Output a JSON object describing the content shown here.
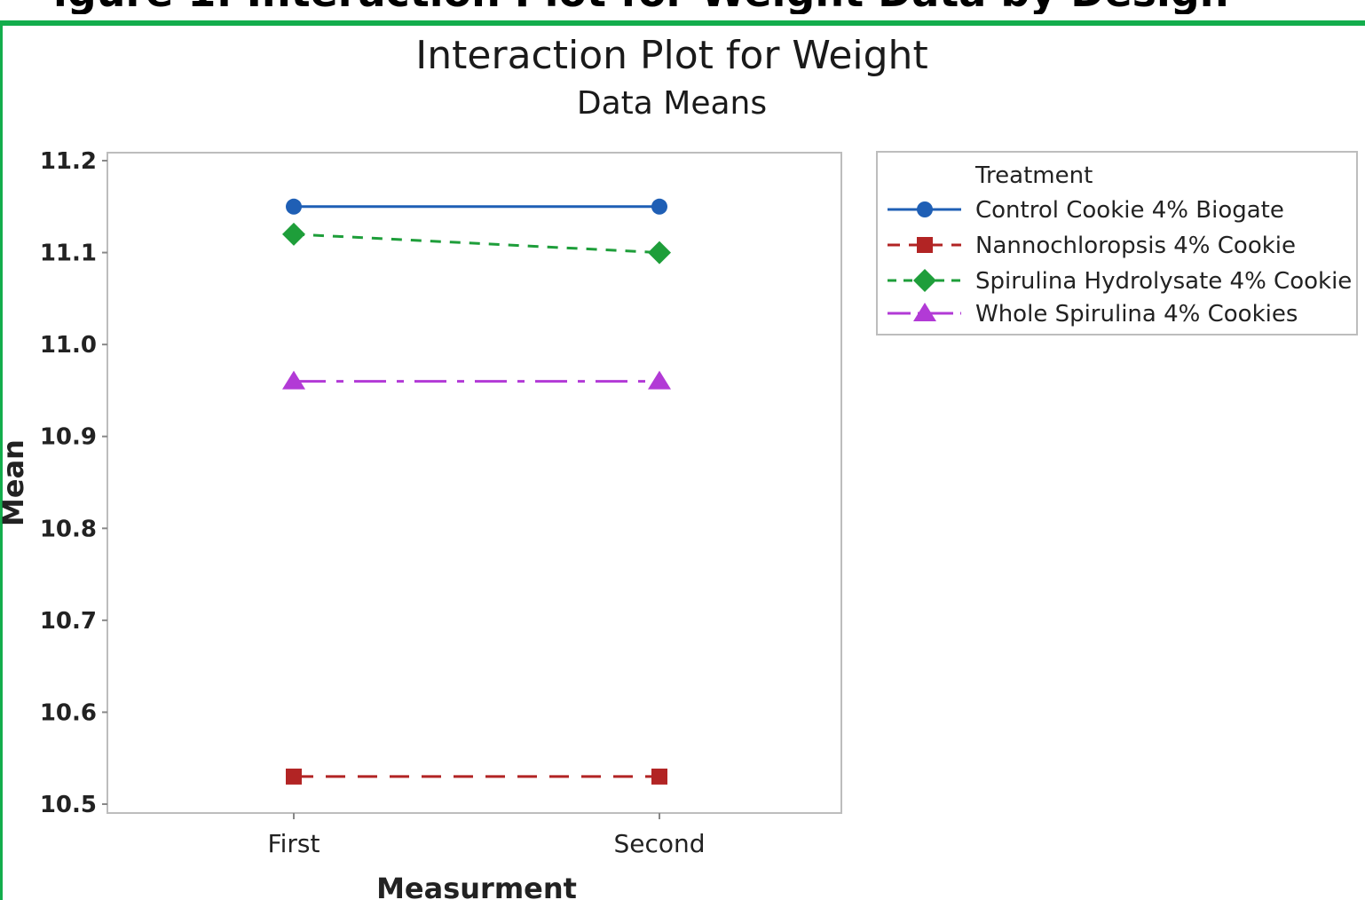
{
  "page_heading_fragment": "igure 1: Interaction Plot for Weight Data by Design",
  "chart_data": {
    "type": "line",
    "title": "Interaction Plot for Weight",
    "subtitle": "Data Means",
    "xlabel": "Measurment",
    "ylabel": "Mean",
    "categories": [
      "First",
      "Second"
    ],
    "ylim": [
      10.5,
      11.2
    ],
    "yticks": [
      "10.5",
      "10.6",
      "10.7",
      "10.8",
      "10.9",
      "11.0",
      "11.1",
      "11.2"
    ],
    "grid": false,
    "legend": {
      "title": "Treatment",
      "placement": "right"
    },
    "series": [
      {
        "name": "Control Cookie 4% Biogate",
        "values": [
          11.15,
          11.15
        ],
        "color": "#1f5fb5",
        "marker": "circle",
        "dash": "solid"
      },
      {
        "name": "Nannochloropsis 4% Cookie",
        "values": [
          10.53,
          10.53
        ],
        "color": "#b22424",
        "marker": "square",
        "dash": "long-dash"
      },
      {
        "name": "Spirulina Hydrolysate 4% Cookie",
        "values": [
          11.12,
          11.1
        ],
        "color": "#1e9e3a",
        "marker": "diamond",
        "dash": "dash"
      },
      {
        "name": "Whole Spirulina 4% Cookies",
        "values": [
          10.96,
          10.96
        ],
        "color": "#b23ad6",
        "marker": "triangle",
        "dash": "dash-dot"
      }
    ]
  }
}
